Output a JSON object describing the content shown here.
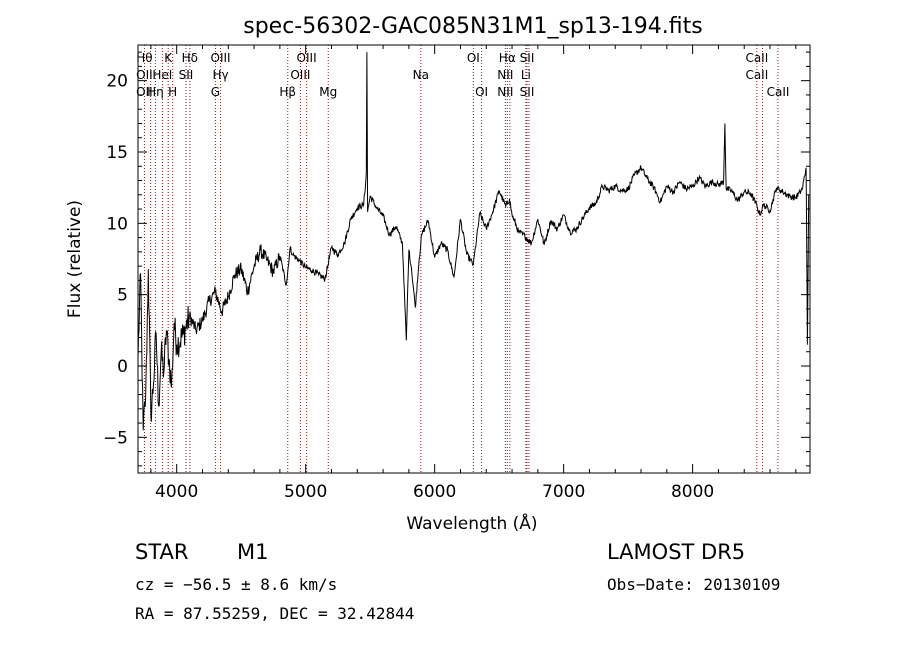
{
  "chart_data": {
    "type": "line",
    "title": "spec-56302-GAC085N31M1_sp13-194.fits",
    "xlabel": "Wavelength (Å)",
    "ylabel": "Flux (relative)",
    "xlim": [
      3700,
      8910
    ],
    "ylim": [
      -7.5,
      22.5
    ],
    "xticks": [
      4000,
      5000,
      6000,
      7000,
      8000
    ],
    "yticks": [
      -5,
      0,
      5,
      10,
      15,
      20
    ],
    "grid": false,
    "series": [
      {
        "color": "#000000",
        "x": [
          3700,
          3720,
          3740,
          3760,
          3780,
          3800,
          3820,
          3840,
          3860,
          3880,
          3900,
          3920,
          3940,
          3960,
          3980,
          4000,
          4050,
          4100,
          4150,
          4200,
          4250,
          4300,
          4350,
          4400,
          4450,
          4500,
          4550,
          4600,
          4650,
          4700,
          4750,
          4800,
          4850,
          4880,
          4900,
          4950,
          5000,
          5050,
          5100,
          5150,
          5200,
          5250,
          5300,
          5350,
          5400,
          5450,
          5470,
          5475,
          5480,
          5500,
          5550,
          5600,
          5650,
          5700,
          5750,
          5780,
          5800,
          5820,
          5850,
          5880,
          5900,
          5950,
          6000,
          6050,
          6100,
          6150,
          6200,
          6250,
          6300,
          6350,
          6400,
          6450,
          6500,
          6550,
          6580,
          6600,
          6650,
          6700,
          6750,
          6800,
          6850,
          6900,
          6950,
          7000,
          7050,
          7100,
          7150,
          7200,
          7250,
          7300,
          7350,
          7400,
          7450,
          7500,
          7550,
          7600,
          7650,
          7700,
          7750,
          7800,
          7850,
          7900,
          7950,
          8000,
          8050,
          8100,
          8150,
          8200,
          8240,
          8250,
          8260,
          8300,
          8350,
          8400,
          8450,
          8500,
          8520,
          8550,
          8600,
          8650,
          8700,
          8750,
          8800,
          8850,
          8880,
          8890,
          8900
        ],
        "y": [
          0.5,
          6.5,
          -4.5,
          -2,
          6.8,
          -3.5,
          -1.2,
          2.3,
          -2.8,
          1,
          -0.5,
          2.5,
          0.5,
          -1.5,
          3,
          1.5,
          2.2,
          3.5,
          2.5,
          3.2,
          4.5,
          5.2,
          3.8,
          4.9,
          6.4,
          6.8,
          5.2,
          7,
          8.1,
          7.4,
          6.6,
          7.7,
          5.7,
          8.3,
          7.8,
          7.4,
          6.9,
          6.7,
          6.4,
          6.1,
          8.3,
          7.8,
          8.6,
          10.3,
          11.1,
          11.3,
          13.5,
          22,
          10.8,
          11.9,
          11.1,
          10.5,
          9.2,
          9.8,
          8.6,
          1.8,
          8.1,
          6.9,
          4.1,
          7.5,
          9.2,
          10.2,
          7.6,
          8.6,
          8.1,
          6.2,
          10.3,
          7.8,
          7.1,
          10.7,
          9.6,
          10.8,
          12.3,
          11.2,
          11.7,
          10.6,
          9.4,
          9.1,
          8.6,
          10.3,
          8.5,
          10.2,
          9.6,
          10.6,
          9.4,
          9.6,
          10.4,
          11.1,
          11.4,
          12.6,
          12.3,
          12.6,
          12.3,
          12.4,
          13.4,
          13.9,
          13.1,
          12.5,
          11.5,
          12.6,
          12.2,
          12.9,
          12.4,
          12.6,
          13.2,
          12.6,
          12.9,
          12.7,
          12.9,
          17,
          12.4,
          12.3,
          11.6,
          12.2,
          12.1,
          11.2,
          10.6,
          11.3,
          10.9,
          12.5,
          12.2,
          11.9,
          11.8,
          12.4,
          13.9,
          1.5,
          12
        ]
      }
    ],
    "lines": [
      {
        "x": 3750,
        "labels": [
          "Hθ",
          "OII",
          "OII"
        ]
      },
      {
        "x": 3798,
        "labels": []
      },
      {
        "x": 3835,
        "labels": [
          "",
          "",
          "Hη"
        ]
      },
      {
        "x": 3889,
        "labels": [
          "",
          "HeI",
          ""
        ]
      },
      {
        "x": 3934,
        "labels": [
          "K",
          "",
          ""
        ]
      },
      {
        "x": 3969,
        "labels": [
          "",
          "",
          "H"
        ]
      },
      {
        "x": 4072,
        "labels": [
          "",
          "SII",
          ""
        ]
      },
      {
        "x": 4102,
        "labels": [
          "Hδ",
          "",
          ""
        ]
      },
      {
        "x": 4300,
        "labels": [
          "",
          "",
          "G"
        ]
      },
      {
        "x": 4340,
        "labels": [
          "OIII",
          "Hγ",
          ""
        ]
      },
      {
        "x": 4861,
        "labels": [
          "",
          "",
          "Hβ"
        ]
      },
      {
        "x": 4959,
        "labels": [
          "",
          "OIII",
          ""
        ]
      },
      {
        "x": 5007,
        "labels": [
          "OIII",
          "",
          ""
        ]
      },
      {
        "x": 5175,
        "labels": [
          "",
          "",
          "Mg"
        ]
      },
      {
        "x": 5893,
        "labels": [
          "",
          "Na",
          ""
        ]
      },
      {
        "x": 6300,
        "labels": [
          "OI",
          "",
          ""
        ]
      },
      {
        "x": 6364,
        "labels": [
          "",
          "",
          "OI"
        ]
      },
      {
        "x": 6548,
        "labels": [
          "",
          "NII",
          "NII"
        ]
      },
      {
        "x": 6563,
        "labels": [
          "Hα",
          "",
          ""
        ]
      },
      {
        "x": 6583,
        "labels": []
      },
      {
        "x": 6707,
        "labels": [
          "",
          "Li",
          ""
        ]
      },
      {
        "x": 6716,
        "labels": [
          "SII",
          "",
          "SII"
        ]
      },
      {
        "x": 6731,
        "labels": []
      },
      {
        "x": 8498,
        "labels": [
          "CaII",
          "CaII",
          ""
        ]
      },
      {
        "x": 8542,
        "labels": []
      },
      {
        "x": 8662,
        "labels": [
          "",
          "",
          "CaII"
        ]
      }
    ]
  },
  "info": {
    "object_class": "STAR",
    "subclass": "M1",
    "survey": "LAMOST  DR5",
    "cz": "cz = −56.5 ± 8.6 km/s",
    "obs_date": "Obs−Date: 20130109",
    "coords": "RA =  87.55259, DEC =  32.42844"
  }
}
